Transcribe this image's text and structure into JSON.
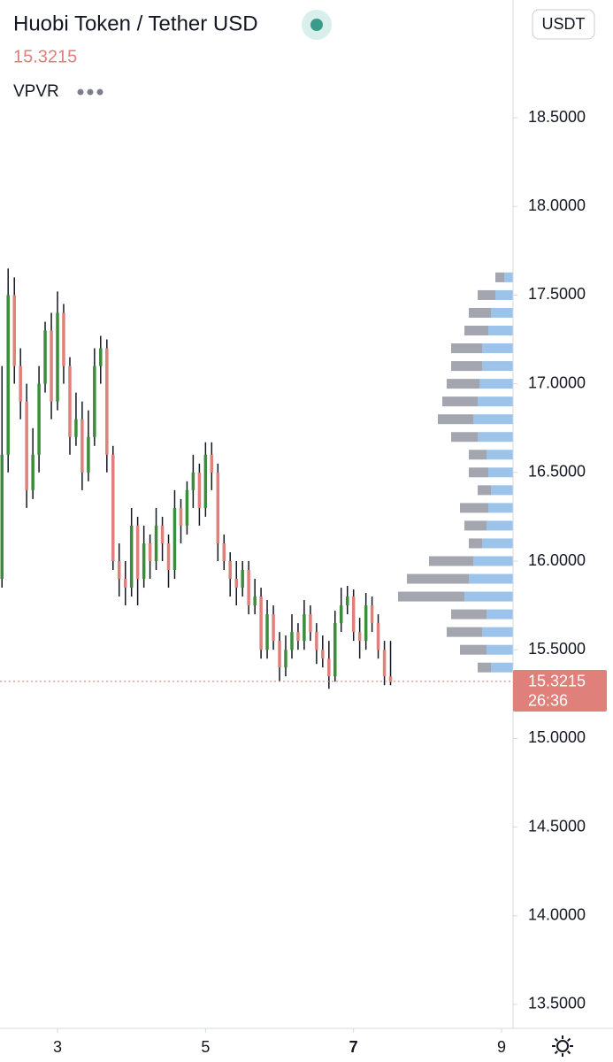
{
  "chart_data": {
    "type": "candlestick",
    "title": "Huobi Token / Tether USD",
    "last_price": 15.3215,
    "countdown": "26:36",
    "indicator": "VPVR",
    "currency": "USDT",
    "up_color": "#3b8d3b",
    "down_color": "#e0807a",
    "wick_color": "#131722",
    "x": [
      2.25,
      2.333,
      2.417,
      2.5,
      2.583,
      2.667,
      2.75,
      2.833,
      2.917,
      3,
      3.083,
      3.167,
      3.25,
      3.333,
      3.417,
      3.5,
      3.583,
      3.667,
      3.75,
      3.833,
      3.917,
      4,
      4.083,
      4.167,
      4.25,
      4.333,
      4.417,
      4.5,
      4.583,
      4.667,
      4.75,
      4.833,
      4.917,
      5,
      5.083,
      5.167,
      5.25,
      5.333,
      5.417,
      5.5,
      5.583,
      5.667,
      5.75,
      5.833,
      5.917,
      6,
      6.083,
      6.167,
      6.25,
      6.333,
      6.417,
      6.5,
      6.583,
      6.667,
      6.75,
      6.833,
      6.917,
      7,
      7.083,
      7.167,
      7.25,
      7.333,
      7.417,
      7.5
    ],
    "open": [
      15.9,
      16.6,
      17.5,
      17.1,
      16.9,
      16.4,
      16.6,
      17.0,
      17.3,
      16.9,
      17.4,
      17.1,
      16.7,
      16.8,
      16.5,
      16.7,
      17.1,
      17.2,
      16.6,
      16.0,
      15.9,
      15.85,
      16.2,
      15.9,
      16.1,
      16.0,
      16.2,
      16.1,
      15.95,
      16.3,
      16.2,
      16.4,
      16.5,
      16.3,
      16.6,
      16.5,
      16.1,
      16.0,
      15.9,
      15.85,
      15.95,
      15.75,
      15.8,
      15.5,
      15.7,
      15.55,
      15.4,
      15.5,
      15.6,
      15.55,
      15.7,
      15.6,
      15.5,
      15.45,
      15.35,
      15.65,
      15.75,
      15.8,
      15.6,
      15.55,
      15.75,
      15.65,
      15.5,
      15.35
    ],
    "high": [
      17.1,
      17.65,
      17.6,
      17.2,
      17.0,
      16.75,
      17.1,
      17.35,
      17.4,
      17.52,
      17.45,
      17.15,
      16.95,
      16.9,
      16.85,
      17.2,
      17.27,
      17.25,
      16.65,
      16.1,
      16.0,
      16.3,
      16.25,
      16.2,
      16.15,
      16.3,
      16.25,
      16.15,
      16.4,
      16.35,
      16.45,
      16.6,
      16.55,
      16.67,
      16.67,
      16.55,
      16.15,
      16.05,
      16.0,
      16.0,
      16.0,
      15.9,
      15.85,
      15.78,
      15.75,
      15.6,
      15.58,
      15.7,
      15.65,
      15.78,
      15.75,
      15.65,
      15.58,
      15.55,
      15.72,
      15.85,
      15.86,
      15.84,
      15.68,
      15.82,
      15.8,
      15.7,
      15.55,
      15.55
    ],
    "low": [
      15.85,
      16.5,
      17.0,
      16.8,
      16.3,
      16.35,
      16.5,
      16.95,
      16.8,
      16.85,
      17.0,
      16.6,
      16.65,
      16.4,
      16.45,
      16.65,
      17.0,
      16.5,
      15.95,
      15.8,
      15.75,
      15.8,
      15.75,
      15.85,
      15.9,
      15.95,
      16.0,
      15.85,
      15.9,
      16.1,
      16.15,
      16.3,
      16.2,
      16.25,
      16.4,
      16.0,
      15.95,
      15.8,
      15.75,
      15.8,
      15.7,
      15.7,
      15.45,
      15.45,
      15.5,
      15.32,
      15.35,
      15.45,
      15.5,
      15.5,
      15.55,
      15.42,
      15.4,
      15.28,
      15.32,
      15.6,
      15.7,
      15.55,
      15.45,
      15.5,
      15.6,
      15.45,
      15.3,
      15.3
    ],
    "close": [
      16.6,
      17.5,
      17.1,
      16.9,
      16.4,
      16.6,
      17.0,
      17.3,
      16.9,
      17.4,
      17.1,
      16.7,
      16.8,
      16.5,
      16.7,
      17.1,
      17.2,
      16.6,
      16.0,
      15.9,
      15.85,
      16.2,
      15.9,
      16.1,
      16.0,
      16.2,
      16.1,
      15.95,
      16.3,
      16.2,
      16.4,
      16.5,
      16.3,
      16.6,
      16.5,
      16.1,
      16.0,
      15.9,
      15.85,
      15.95,
      15.75,
      15.8,
      15.5,
      15.7,
      15.55,
      15.4,
      15.5,
      15.6,
      15.55,
      15.7,
      15.6,
      15.5,
      15.45,
      15.35,
      15.65,
      15.75,
      15.8,
      15.6,
      15.55,
      15.75,
      15.65,
      15.5,
      15.35,
      15.3215
    ],
    "xlim": [
      2.223,
      9.155
    ],
    "xticks": [
      3,
      5,
      7,
      9
    ],
    "ylim": [
      13.375,
      19.164
    ],
    "yticks": [
      {
        "value": 13.5,
        "label": "13.5000"
      },
      {
        "value": 14,
        "label": "14.0000"
      },
      {
        "value": 14.5,
        "label": "14.5000"
      },
      {
        "value": 15,
        "label": "15.0000"
      },
      {
        "value": 15.5,
        "label": "15.5000"
      },
      {
        "value": 16,
        "label": "16.0000"
      },
      {
        "value": 16.5,
        "label": "16.5000"
      },
      {
        "value": 17,
        "label": "17.0000"
      },
      {
        "value": 17.5,
        "label": "17.5000"
      },
      {
        "value": 18,
        "label": "18.0000"
      },
      {
        "value": 18.5,
        "label": "18.5000"
      }
    ],
    "volume_profile": {
      "up_color": "#9cc3ea",
      "down_color": "#a3a6ae",
      "prices": [
        15.4,
        15.5,
        15.6,
        15.7,
        15.8,
        15.9,
        16.0,
        16.1,
        16.2,
        16.3,
        16.4,
        16.5,
        16.6,
        16.7,
        16.8,
        16.9,
        17.0,
        17.1,
        17.2,
        17.3,
        17.4,
        17.5,
        17.6
      ],
      "up": [
        25,
        30,
        35,
        30,
        55,
        50,
        45,
        35,
        30,
        28,
        25,
        28,
        30,
        40,
        45,
        40,
        38,
        35,
        35,
        28,
        25,
        20,
        10
      ],
      "down": [
        15,
        30,
        40,
        40,
        75,
        70,
        50,
        15,
        25,
        32,
        15,
        22,
        20,
        30,
        40,
        40,
        37,
        35,
        35,
        27,
        25,
        20,
        10
      ]
    }
  }
}
